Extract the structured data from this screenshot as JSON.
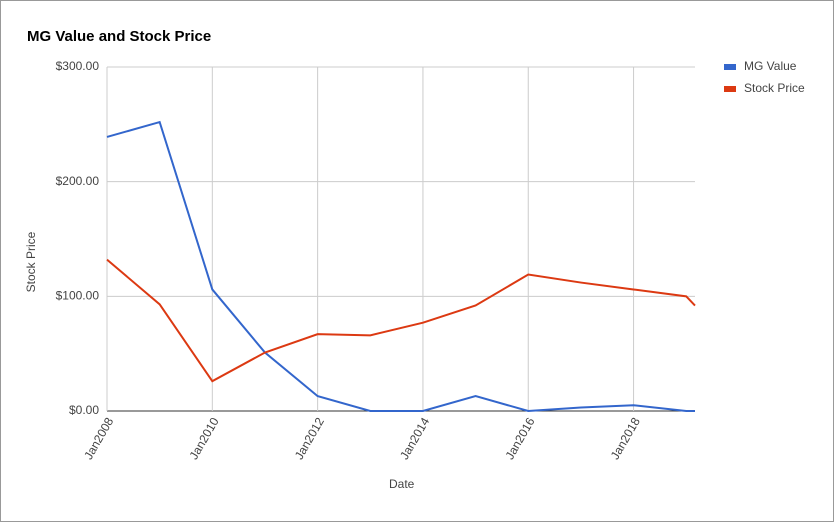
{
  "chart_data": {
    "type": "line",
    "title": "MG Value and Stock Price",
    "x_label": "Date",
    "y_label": "Stock Price",
    "x": [
      "2008-01",
      "2009-01",
      "2010-01",
      "2011-01",
      "2012-01",
      "2013-01",
      "2014-01",
      "2015-01",
      "2016-01",
      "2017-01",
      "2018-01",
      "2019-01",
      "2019-03"
    ],
    "series": [
      {
        "name": "MG Value",
        "color": "#3366cc",
        "values": [
          239,
          252,
          106,
          51,
          13,
          0,
          0,
          13,
          0,
          3,
          5,
          0,
          0
        ]
      },
      {
        "name": "Stock Price",
        "color": "#dc3912",
        "values": [
          132,
          93,
          26,
          51,
          67,
          66,
          77,
          92,
          119,
          112,
          106,
          100,
          92
        ]
      }
    ],
    "xlim": [
      "2008-01",
      "2019-03"
    ],
    "xticks": [
      {
        "value": "2008-01",
        "label": "Jan2008"
      },
      {
        "value": "2010-01",
        "label": "Jan2010"
      },
      {
        "value": "2012-01",
        "label": "Jan2012"
      },
      {
        "value": "2014-01",
        "label": "Jan2014"
      },
      {
        "value": "2016-01",
        "label": "Jan2016"
      },
      {
        "value": "2018-01",
        "label": "Jan2018"
      }
    ],
    "ylim": [
      0,
      300
    ],
    "yticks": [
      {
        "value": 0,
        "label": "$0.00"
      },
      {
        "value": 100,
        "label": "$100.00"
      },
      {
        "value": 200,
        "label": "$200.00"
      },
      {
        "value": 300,
        "label": "$300.00"
      }
    ],
    "grid": true,
    "legend": "right"
  }
}
